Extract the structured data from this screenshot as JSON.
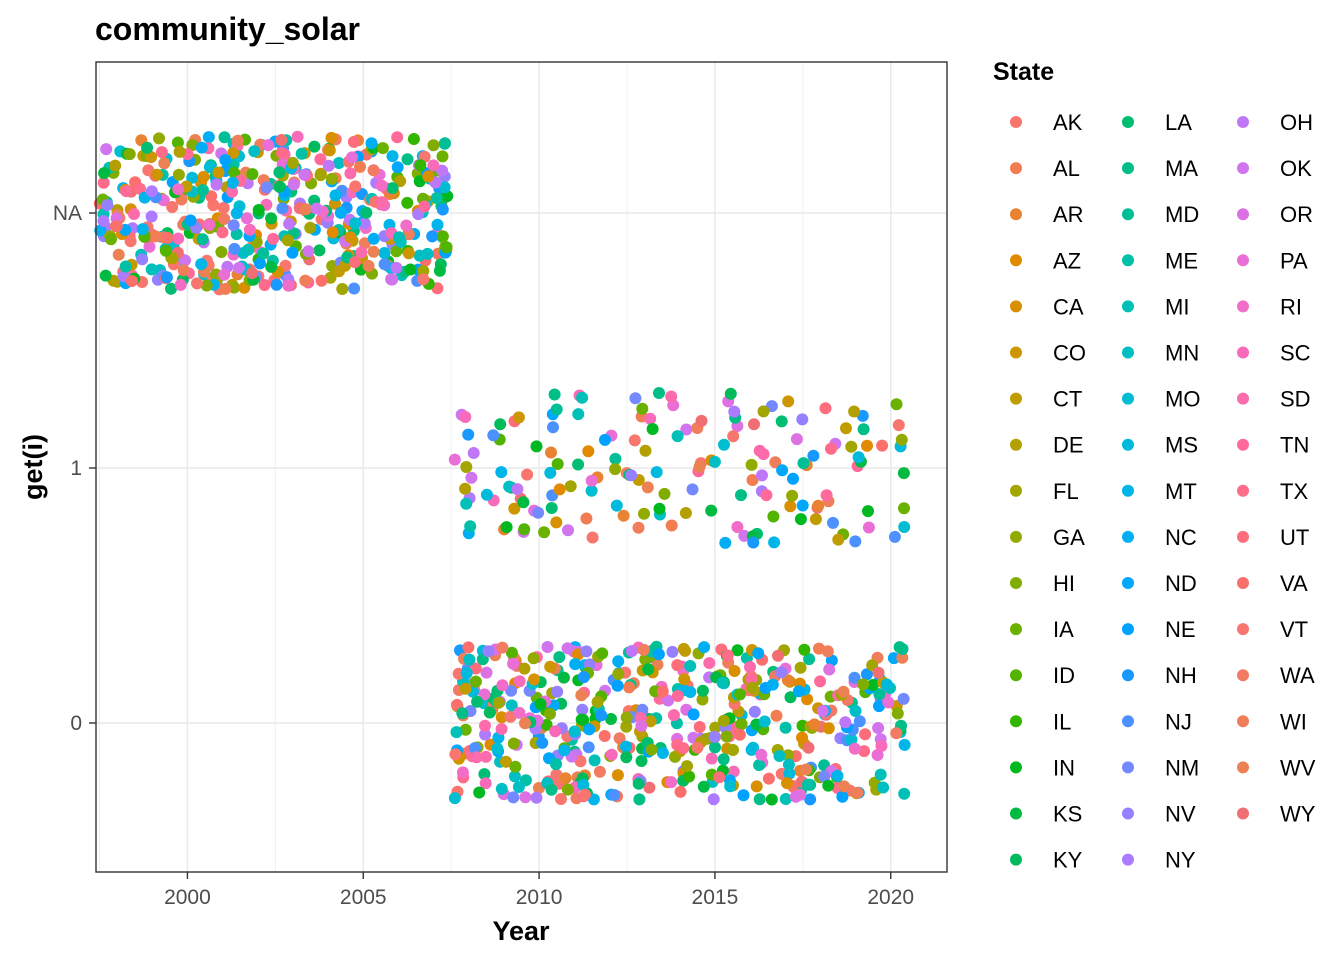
{
  "chart_data": {
    "type": "scatter",
    "title": "community_solar",
    "xlabel": "Year",
    "ylabel": "get(i)",
    "x_ticks": [
      "2000",
      "2005",
      "2010",
      "2015",
      "2020"
    ],
    "y_ticks": [
      "0",
      "1",
      "NA"
    ],
    "xlim": [
      1997.4,
      2021.6
    ],
    "grid": true,
    "legend_title": "State",
    "legend_position": "right",
    "jitter": "points jittered around their category",
    "clusters": [
      {
        "label": "NA",
        "y_category": "NA",
        "x_range": [
          1997.5,
          2007.4
        ],
        "y_spread": 0.6,
        "approx_points": 500
      },
      {
        "label": "1",
        "y_category": 1,
        "x_range": [
          2007.6,
          2020.4
        ],
        "y_spread": 0.6,
        "approx_points": 170
      },
      {
        "label": "0",
        "y_category": 0,
        "x_range": [
          2007.6,
          2020.4
        ],
        "y_spread": 0.6,
        "approx_points": 520
      }
    ],
    "series": [
      {
        "name": "AK",
        "color": "#F8766D"
      },
      {
        "name": "AL",
        "color": "#F27D52"
      },
      {
        "name": "AR",
        "color": "#EA8331"
      },
      {
        "name": "AZ",
        "color": "#E18A00"
      },
      {
        "name": "CA",
        "color": "#D89000"
      },
      {
        "name": "CO",
        "color": "#CD9600"
      },
      {
        "name": "CT",
        "color": "#C19C00"
      },
      {
        "name": "DE",
        "color": "#B3A000"
      },
      {
        "name": "FL",
        "color": "#A3A500"
      },
      {
        "name": "GA",
        "color": "#93AA00"
      },
      {
        "name": "HI",
        "color": "#81AD00"
      },
      {
        "name": "IA",
        "color": "#6BB100"
      },
      {
        "name": "ID",
        "color": "#53B400"
      },
      {
        "name": "IL",
        "color": "#32B600"
      },
      {
        "name": "IN",
        "color": "#00B81F"
      },
      {
        "name": "KS",
        "color": "#00BA42"
      },
      {
        "name": "KY",
        "color": "#00BB5C"
      },
      {
        "name": "LA",
        "color": "#00BD71"
      },
      {
        "name": "MA",
        "color": "#00BE85"
      },
      {
        "name": "MD",
        "color": "#00BF96"
      },
      {
        "name": "ME",
        "color": "#00C0A7"
      },
      {
        "name": "MI",
        "color": "#00C0B8"
      },
      {
        "name": "MN",
        "color": "#00BFC4"
      },
      {
        "name": "MO",
        "color": "#00BDD1"
      },
      {
        "name": "MS",
        "color": "#00BADE"
      },
      {
        "name": "MT",
        "color": "#00B5E9"
      },
      {
        "name": "NC",
        "color": "#00AFF3"
      },
      {
        "name": "ND",
        "color": "#00A8FC"
      },
      {
        "name": "NE",
        "color": "#00A2FF"
      },
      {
        "name": "NH",
        "color": "#1799FF"
      },
      {
        "name": "NJ",
        "color": "#4D91FF"
      },
      {
        "name": "NM",
        "color": "#7589FF"
      },
      {
        "name": "NV",
        "color": "#9580FF"
      },
      {
        "name": "NY",
        "color": "#AC7BFF"
      },
      {
        "name": "OH",
        "color": "#C077F7"
      },
      {
        "name": "OK",
        "color": "#D075EE"
      },
      {
        "name": "OR",
        "color": "#DD71E3"
      },
      {
        "name": "PA",
        "color": "#E96FD6"
      },
      {
        "name": "RI",
        "color": "#F16DC8"
      },
      {
        "name": "SC",
        "color": "#F86BBA"
      },
      {
        "name": "SD",
        "color": "#FC6BAB"
      },
      {
        "name": "TN",
        "color": "#FF6A9B"
      },
      {
        "name": "TX",
        "color": "#FF6B8A"
      },
      {
        "name": "UT",
        "color": "#FE6D7B"
      },
      {
        "name": "VA",
        "color": "#FC706B"
      },
      {
        "name": "VT",
        "color": "#F8766D"
      },
      {
        "name": "WA",
        "color": "#F47B63"
      },
      {
        "name": "WI",
        "color": "#F07E5B"
      },
      {
        "name": "WV",
        "color": "#EC8153"
      },
      {
        "name": "WY",
        "color": "#F16F73"
      }
    ],
    "legend_order": [
      "AK",
      "AL",
      "AR",
      "AZ",
      "CA",
      "CO",
      "CT",
      "DE",
      "FL",
      "GA",
      "HI",
      "IA",
      "ID",
      "IL",
      "IN",
      "KS",
      "KY",
      "LA",
      "MA",
      "MD",
      "ME",
      "MI",
      "MN",
      "MO",
      "MS",
      "MT",
      "NC",
      "ND",
      "NE",
      "NH",
      "NJ",
      "NM",
      "NV",
      "NY",
      "OH",
      "OK",
      "OR",
      "PA",
      "RI",
      "SC",
      "SD",
      "TN",
      "TX",
      "UT",
      "VA",
      "VT",
      "WA",
      "WI",
      "WV",
      "WY"
    ]
  }
}
